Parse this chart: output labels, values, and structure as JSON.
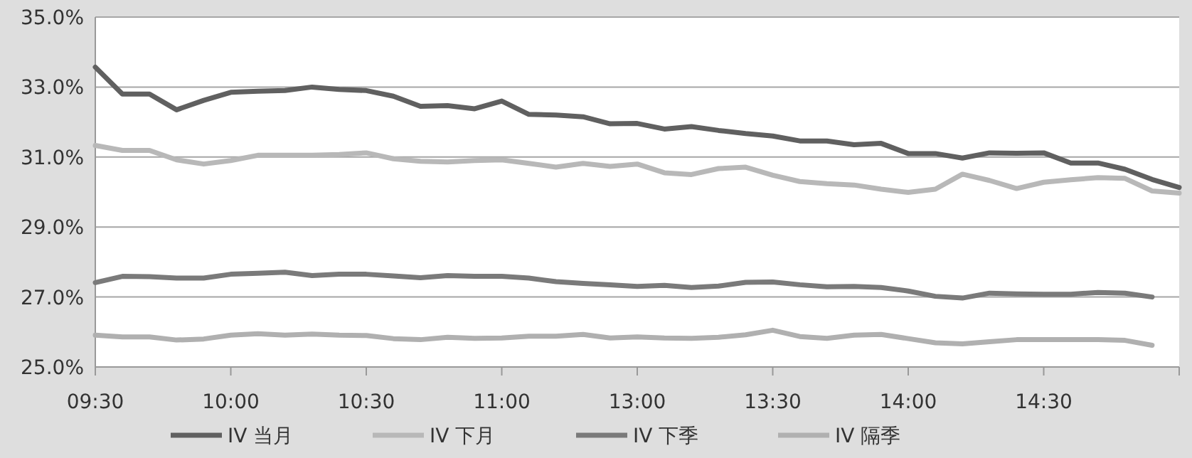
{
  "chart_data": {
    "type": "line",
    "ylim": [
      25,
      35
    ],
    "categories": [
      "09:30",
      null,
      null,
      null,
      null,
      "10:00",
      null,
      null,
      null,
      null,
      "10:30",
      null,
      null,
      null,
      null,
      "11:00",
      null,
      null,
      null,
      null,
      "13:00",
      null,
      null,
      null,
      null,
      "13:30",
      null,
      null,
      null,
      null,
      "14:00",
      null,
      null,
      null,
      null,
      "14:30",
      null,
      null,
      null,
      null,
      null
    ],
    "yticks": [
      {
        "value": 25,
        "label": "25.0%"
      },
      {
        "value": 27,
        "label": "27.0%"
      },
      {
        "value": 29,
        "label": "29.0%"
      },
      {
        "value": 31,
        "label": "31.0%"
      },
      {
        "value": 33,
        "label": "33.0%"
      },
      {
        "value": 35,
        "label": "35.0%"
      }
    ],
    "grid": "y",
    "legend": "bottom",
    "marker": "none",
    "line_style": "solid",
    "series": [
      {
        "name": "IV 当月",
        "color": "#606060",
        "values": [
          33.57,
          32.8,
          32.8,
          32.35,
          32.62,
          32.85,
          32.88,
          32.9,
          33.0,
          32.93,
          32.9,
          32.74,
          32.45,
          32.47,
          32.38,
          32.6,
          32.22,
          32.2,
          32.15,
          31.95,
          31.96,
          31.8,
          31.87,
          31.76,
          31.67,
          31.6,
          31.46,
          31.46,
          31.35,
          31.39,
          31.1,
          31.1,
          30.97,
          31.12,
          31.11,
          31.12,
          30.83,
          30.83,
          30.65,
          30.36,
          30.13
        ]
      },
      {
        "name": "IV 下月",
        "color": "#b8b8b8",
        "values": [
          31.33,
          31.19,
          31.19,
          30.92,
          30.8,
          30.9,
          31.05,
          31.05,
          31.05,
          31.07,
          31.12,
          30.95,
          30.88,
          30.86,
          30.9,
          30.92,
          30.82,
          30.71,
          30.82,
          30.73,
          30.8,
          30.55,
          30.5,
          30.67,
          30.71,
          30.48,
          30.3,
          30.24,
          30.2,
          30.08,
          29.99,
          30.08,
          30.51,
          30.33,
          30.1,
          30.28,
          30.35,
          30.41,
          30.39,
          30.03,
          29.97
        ]
      },
      {
        "name": "IV 下季",
        "color": "#7a7a7a",
        "values": [
          27.41,
          27.59,
          27.58,
          27.54,
          27.54,
          27.65,
          27.68,
          27.71,
          27.61,
          27.65,
          27.65,
          27.6,
          27.55,
          27.61,
          27.59,
          27.59,
          27.54,
          27.44,
          27.39,
          27.35,
          27.3,
          27.33,
          27.27,
          27.31,
          27.42,
          27.43,
          27.35,
          27.29,
          27.3,
          27.27,
          27.17,
          27.02,
          26.97,
          27.11,
          27.09,
          27.08,
          27.08,
          27.13,
          27.11,
          27.0,
          null
        ]
      },
      {
        "name": "IV 隔季",
        "color": "#b0b0b0",
        "values": [
          25.91,
          25.86,
          25.86,
          25.77,
          25.8,
          25.91,
          25.95,
          25.91,
          25.94,
          25.91,
          25.9,
          25.81,
          25.78,
          25.85,
          25.82,
          25.83,
          25.88,
          25.88,
          25.93,
          25.83,
          25.86,
          25.83,
          25.82,
          25.85,
          25.92,
          26.05,
          25.87,
          25.82,
          25.91,
          25.93,
          25.81,
          25.69,
          25.66,
          25.72,
          25.78,
          25.78,
          25.78,
          25.78,
          25.76,
          25.62,
          null
        ]
      }
    ]
  }
}
